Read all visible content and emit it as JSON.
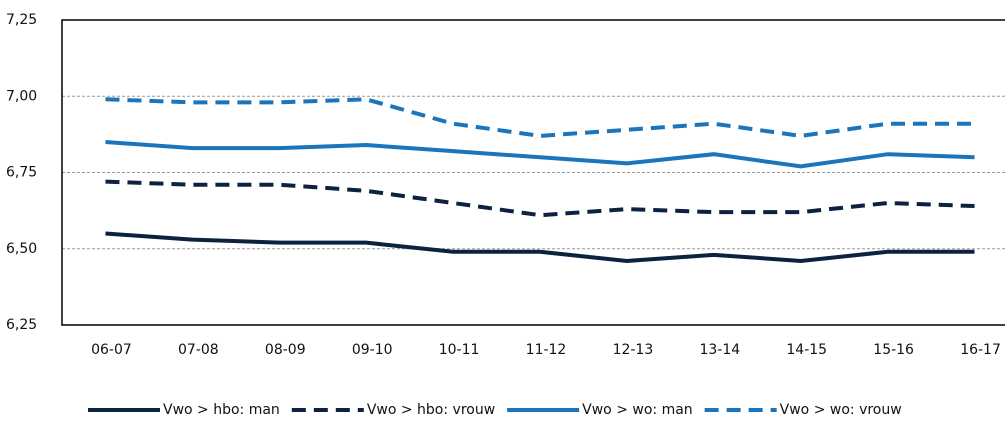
{
  "chart_data": {
    "type": "line",
    "categories": [
      "06-07",
      "07-08",
      "08-09",
      "09-10",
      "10-11",
      "11-12",
      "12-13",
      "13-14",
      "14-15",
      "15-16",
      "16-17"
    ],
    "series": [
      {
        "name": "Vwo > hbo: man",
        "color": "#0d2140",
        "dashed": false,
        "values": [
          6.55,
          6.53,
          6.52,
          6.52,
          6.49,
          6.49,
          6.46,
          6.48,
          6.46,
          6.49,
          6.49
        ]
      },
      {
        "name": "Vwo > hbo: vrouw",
        "color": "#0d2140",
        "dashed": true,
        "values": [
          6.72,
          6.71,
          6.71,
          6.69,
          6.65,
          6.61,
          6.63,
          6.62,
          6.62,
          6.65,
          6.64
        ]
      },
      {
        "name": "Vwo > wo: man",
        "color": "#1a75bc",
        "dashed": false,
        "values": [
          6.85,
          6.83,
          6.83,
          6.84,
          6.82,
          6.8,
          6.78,
          6.81,
          6.77,
          6.81,
          6.8
        ]
      },
      {
        "name": "Vwo > wo: vrouw",
        "color": "#1a75bc",
        "dashed": true,
        "values": [
          6.99,
          6.98,
          6.98,
          6.99,
          6.91,
          6.87,
          6.89,
          6.91,
          6.87,
          6.91,
          6.91
        ]
      }
    ],
    "ylim": [
      6.25,
      7.25
    ],
    "yticks": [
      {
        "value": 6.25,
        "label": "6,25"
      },
      {
        "value": 6.5,
        "label": "6,50"
      },
      {
        "value": 6.75,
        "label": "6,75"
      },
      {
        "value": 7.0,
        "label": "7,00"
      },
      {
        "value": 7.25,
        "label": "7,25"
      }
    ],
    "grid": true,
    "legend": "bottom"
  }
}
